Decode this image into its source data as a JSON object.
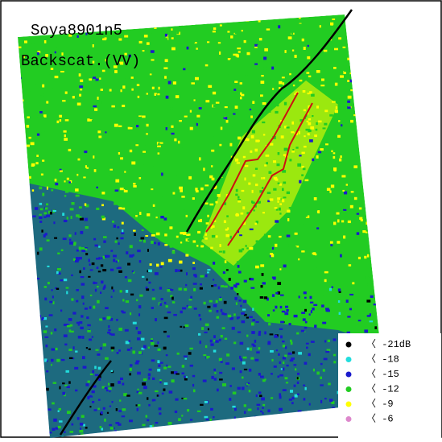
{
  "header": {
    "title": "Soya8901n5",
    "subtitle": "Backscat.(VV)"
  },
  "legend": {
    "items": [
      {
        "label": "〈 -21dB",
        "color": "#000000"
      },
      {
        "label": "〈 -18",
        "color": "#22dddd"
      },
      {
        "label": "〈 -15",
        "color": "#1a1acc"
      },
      {
        "label": "〈 -12",
        "color": "#22cc22"
      },
      {
        "label": "〈  -9",
        "color": "#ffff00"
      },
      {
        "label": "〈  -6",
        "color": "#dd88cc"
      }
    ]
  }
}
